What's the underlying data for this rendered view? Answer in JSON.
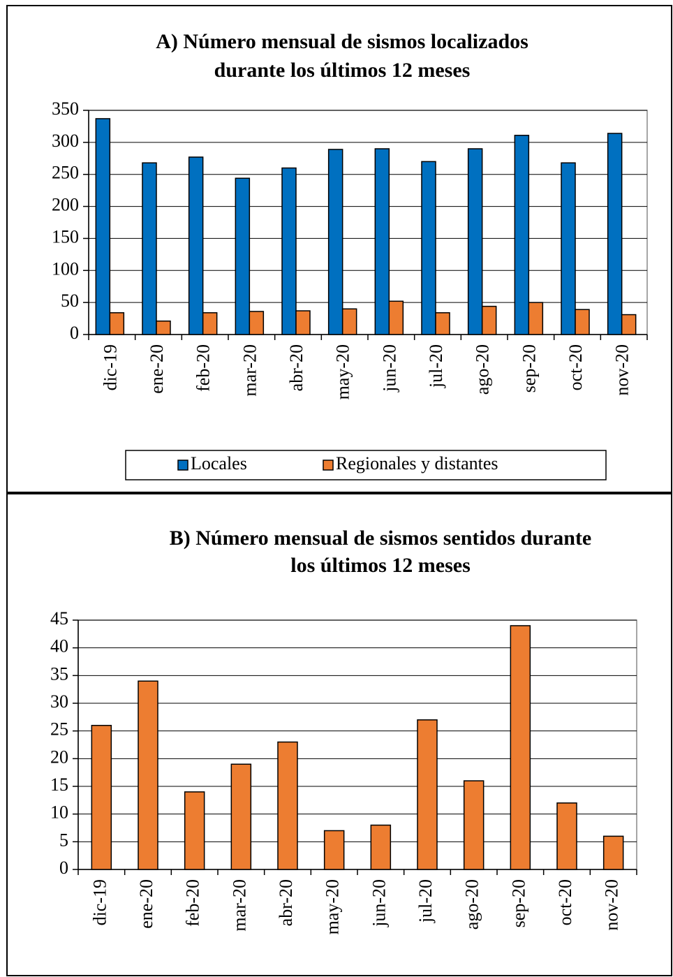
{
  "chart_data": [
    {
      "type": "bar",
      "title": [
        "A) Número mensual de sismos localizados",
        "durante los últimos 12 meses"
      ],
      "categories": [
        "dic-19",
        "ene-20",
        "feb-20",
        "mar-20",
        "abr-20",
        "may-20",
        "jun-20",
        "jul-20",
        "ago-20",
        "sep-20",
        "oct-20",
        "nov-20"
      ],
      "series": [
        {
          "name": "Locales",
          "color": "#0070c0",
          "values": [
            337,
            268,
            277,
            244,
            260,
            289,
            290,
            270,
            290,
            311,
            268,
            314
          ]
        },
        {
          "name": "Regionales y distantes",
          "color": "#ed7d31",
          "values": [
            34,
            21,
            34,
            36,
            37,
            40,
            52,
            34,
            44,
            50,
            39,
            31
          ]
        }
      ],
      "ylim": [
        0,
        350
      ],
      "yticks": [
        0,
        50,
        100,
        150,
        200,
        250,
        300,
        350
      ],
      "grid": true,
      "legend": "bottom"
    },
    {
      "type": "bar",
      "title": [
        "B) Número mensual de sismos sentidos durante",
        "los últimos 12 meses"
      ],
      "categories": [
        "dic-19",
        "ene-20",
        "feb-20",
        "mar-20",
        "abr-20",
        "may-20",
        "jun-20",
        "jul-20",
        "ago-20",
        "sep-20",
        "oct-20",
        "nov-20"
      ],
      "values": [
        26,
        34,
        14,
        19,
        23,
        7,
        8,
        27,
        16,
        44,
        12,
        6
      ],
      "color": "#ed7d31",
      "ylim": [
        0,
        45
      ],
      "yticks": [
        0,
        5,
        10,
        15,
        20,
        25,
        30,
        35,
        40,
        45
      ],
      "grid": true
    }
  ]
}
